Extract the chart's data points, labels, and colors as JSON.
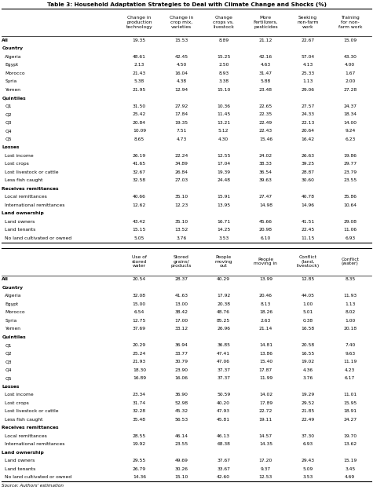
{
  "title": "Table 3: Household Adaptation Strategies to Deal with Climate Change and Shocks (%)",
  "col_headers_1": [
    "Change in\nproduction\ntechnology",
    "Change in\ncrop mix,\nvarieties",
    "Change\ncrops vs.\nlivestock",
    "More\nFertilizers,\npesticides",
    "Seeking\nnon-farm\nwork",
    "Training\nfor non-\nfarm work"
  ],
  "col_headers_2": [
    "Use of\nstored\nwater",
    "Stored\ngrains/\nproducts",
    "People\nmoving\nout",
    "People\nmoving in",
    "Conflict\n(land,\nlivestock)",
    "Conflict\n(water)"
  ],
  "row_labels": [
    "All",
    "Country",
    "Algeria",
    "Egypt",
    "Morocco",
    "Syria",
    "Yemen",
    "Quintiles",
    "Q1",
    "Q2",
    "Q3",
    "Q4",
    "Q5",
    "Losses",
    "Lost income",
    "Lost crops",
    "Lost livestock or cattle",
    "Less fish caught",
    "Receives remittances",
    "Local remittances",
    "International remittances",
    "Land ownership",
    "Land owners",
    "Land tenants",
    "No land cultivated or owned"
  ],
  "bold_rows": [
    "All",
    "Country",
    "Quintiles",
    "Losses",
    "Receives remittances",
    "Land ownership"
  ],
  "data_1": {
    "All": [
      19.35,
      15.53,
      8.89,
      21.12,
      22.67,
      15.09
    ],
    "Country": [
      null,
      null,
      null,
      null,
      null,
      null
    ],
    "Algeria": [
      48.61,
      42.45,
      15.25,
      42.16,
      57.04,
      43.3
    ],
    "Egypt": [
      2.13,
      4.5,
      2.5,
      4.63,
      4.13,
      4.0
    ],
    "Morocco": [
      21.43,
      16.04,
      8.93,
      31.47,
      25.33,
      1.67
    ],
    "Syria": [
      5.38,
      4.38,
      3.38,
      5.88,
      1.13,
      2.0
    ],
    "Yemen": [
      21.95,
      12.94,
      15.1,
      23.48,
      29.06,
      27.28
    ],
    "Quintiles": [
      null,
      null,
      null,
      null,
      null,
      null
    ],
    "Q1": [
      31.5,
      27.92,
      10.36,
      22.65,
      27.57,
      24.37
    ],
    "Q2": [
      25.42,
      17.84,
      11.45,
      22.35,
      24.33,
      18.34
    ],
    "Q3": [
      20.84,
      19.35,
      13.21,
      22.49,
      22.13,
      14.0
    ],
    "Q4": [
      10.09,
      7.51,
      5.12,
      22.43,
      20.64,
      9.24
    ],
    "Q5": [
      8.65,
      4.73,
      4.3,
      15.46,
      16.42,
      6.23
    ],
    "Losses": [
      null,
      null,
      null,
      null,
      null,
      null
    ],
    "Lost income": [
      26.19,
      22.24,
      12.55,
      24.02,
      26.63,
      19.86
    ],
    "Lost crops": [
      41.65,
      34.89,
      17.04,
      38.33,
      39.25,
      29.77
    ],
    "Lost livestock or cattle": [
      32.67,
      26.84,
      19.39,
      36.54,
      28.87,
      23.79
    ],
    "Less fish caught": [
      32.58,
      27.03,
      24.48,
      39.63,
      30.6,
      23.55
    ],
    "Receives remittances": [
      null,
      null,
      null,
      null,
      null,
      null
    ],
    "Local remittances": [
      40.66,
      35.1,
      15.91,
      27.47,
      40.78,
      35.86
    ],
    "International remittances": [
      12.62,
      12.23,
      13.95,
      14.98,
      14.96,
      10.64
    ],
    "Land ownership": [
      null,
      null,
      null,
      null,
      null,
      null
    ],
    "Land owners": [
      43.42,
      35.1,
      16.71,
      45.66,
      41.51,
      29.08
    ],
    "Land tenants": [
      15.15,
      13.52,
      14.25,
      20.98,
      22.45,
      11.06
    ],
    "No land cultivated or owned": [
      5.05,
      3.76,
      3.53,
      6.1,
      11.15,
      6.93
    ]
  },
  "data_2": {
    "All": [
      20.54,
      28.37,
      40.29,
      13.99,
      12.85,
      8.35
    ],
    "Country": [
      null,
      null,
      null,
      null,
      null,
      null
    ],
    "Algeria": [
      32.08,
      41.63,
      17.92,
      20.46,
      44.05,
      11.93
    ],
    "Egypt": [
      15.0,
      13.0,
      20.38,
      8.13,
      1.0,
      1.13
    ],
    "Morocco": [
      6.54,
      38.42,
      48.76,
      18.26,
      5.01,
      8.02
    ],
    "Syria": [
      12.75,
      17.0,
      85.25,
      2.63,
      0.38,
      1.0
    ],
    "Yemen": [
      37.69,
      33.12,
      26.96,
      21.14,
      16.58,
      20.18
    ],
    "Quintiles": [
      null,
      null,
      null,
      null,
      null,
      null
    ],
    "Q1": [
      20.29,
      36.94,
      36.85,
      14.81,
      20.58,
      7.4
    ],
    "Q2": [
      25.24,
      33.77,
      47.41,
      13.86,
      16.55,
      9.63
    ],
    "Q3": [
      21.93,
      30.79,
      47.06,
      15.4,
      19.02,
      11.19
    ],
    "Q4": [
      18.3,
      23.9,
      37.37,
      17.87,
      4.36,
      4.23
    ],
    "Q5": [
      16.89,
      16.06,
      37.37,
      11.99,
      3.76,
      6.17
    ],
    "Losses": [
      null,
      null,
      null,
      null,
      null,
      null
    ],
    "Lost income": [
      23.34,
      36.9,
      50.59,
      14.02,
      19.29,
      11.01
    ],
    "Lost crops": [
      31.74,
      52.98,
      40.2,
      17.89,
      29.52,
      15.95
    ],
    "Lost livestock or cattle": [
      32.28,
      45.32,
      47.93,
      22.72,
      21.85,
      18.91
    ],
    "Less fish caught": [
      35.48,
      56.53,
      45.81,
      19.11,
      22.49,
      24.27
    ],
    "Receives remittances": [
      null,
      null,
      null,
      null,
      null,
      null
    ],
    "Local remittances": [
      28.55,
      46.14,
      46.13,
      14.57,
      37.3,
      19.7
    ],
    "International remittances": [
      19.92,
      23.55,
      68.38,
      14.35,
      6.93,
      13.62
    ],
    "Land ownership": [
      null,
      null,
      null,
      null,
      null,
      null
    ],
    "Land owners": [
      29.55,
      49.69,
      37.67,
      17.2,
      29.43,
      15.19
    ],
    "Land tenants": [
      26.79,
      30.26,
      33.67,
      9.37,
      5.09,
      3.45
    ],
    "No land cultivated or owned": [
      14.36,
      15.1,
      42.6,
      12.53,
      3.53,
      4.69
    ]
  },
  "source": "Source: Authors' estimation"
}
